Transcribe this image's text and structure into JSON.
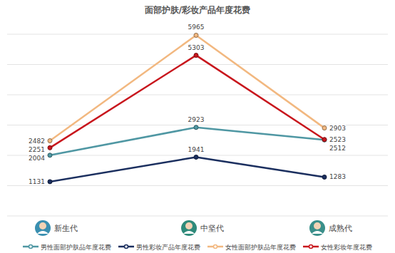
{
  "chart_data": {
    "type": "line",
    "title": "面部护肤/彩妆产品年度花费",
    "categories": [
      "新生代",
      "中坚代",
      "成熟代"
    ],
    "series": [
      {
        "name": "男性面部护肤品年度花费",
        "color": "#4f97a3",
        "values": [
          2004,
          2923,
          2512
        ]
      },
      {
        "name": "男性彩妆产品年度花费",
        "color": "#1b2f5f",
        "values": [
          1131,
          1941,
          1283
        ]
      },
      {
        "name": "女性面部护肤品年度花费",
        "color": "#f2b880",
        "values": [
          2482,
          5965,
          2903
        ]
      },
      {
        "name": "女性彩妆年度花费",
        "color": "#c8161d",
        "values": [
          2251,
          5303,
          2523
        ]
      }
    ],
    "ylim": [
      0,
      6000
    ],
    "yticks": [
      0,
      1000,
      2000,
      3000,
      4000,
      5000,
      6000
    ],
    "grid": true,
    "tick_labels": "x",
    "legend": "bottom",
    "data_labels": true,
    "marker": "circle"
  }
}
